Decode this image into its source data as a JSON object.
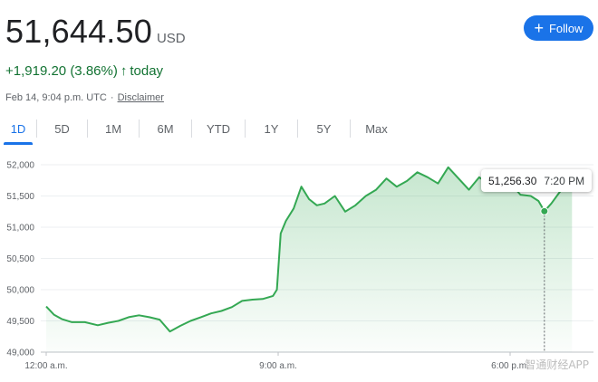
{
  "quote": {
    "price": "51,644.50",
    "currency": "USD",
    "change": "+1,919.20 (3.86%)",
    "change_arrow": "↑",
    "period": "today",
    "timestamp": "Feb 14, 9:04 p.m. UTC",
    "separator": "·",
    "disclaimer": "Disclaimer"
  },
  "follow_button": {
    "label": "Follow",
    "icon": "plus-icon"
  },
  "tabs": [
    {
      "label": "1D",
      "active": true
    },
    {
      "label": "5D",
      "active": false
    },
    {
      "label": "1M",
      "active": false
    },
    {
      "label": "6M",
      "active": false
    },
    {
      "label": "YTD",
      "active": false
    },
    {
      "label": "1Y",
      "active": false
    },
    {
      "label": "5Y",
      "active": false
    },
    {
      "label": "Max",
      "active": false
    }
  ],
  "tooltip": {
    "value": "51,256.30",
    "time": "7:20 PM"
  },
  "watermark": "智通财经APP",
  "colors": {
    "line": "#34a853",
    "accent": "#1a73e8",
    "positive": "#137333"
  },
  "chart_data": {
    "type": "area",
    "title": "",
    "xlabel": "",
    "ylabel": "",
    "ylim": [
      49000,
      52000
    ],
    "xlim": [
      0,
      23
    ],
    "yticks": [
      "52,000",
      "51,500",
      "51,000",
      "50,500",
      "50,000",
      "49,500",
      "49,000"
    ],
    "ytick_values": [
      52000,
      51500,
      51000,
      50500,
      50000,
      49500,
      49000
    ],
    "xticks": [
      "12:00 a.m.",
      "9:00 a.m.",
      "6:00 p.m."
    ],
    "xtick_values": [
      0,
      9,
      18
    ],
    "grid": true,
    "crosshair_x": 19.33,
    "highlight_point": {
      "x": 19.33,
      "y": 51256.3
    },
    "x": [
      0,
      0.3,
      0.6,
      1.0,
      1.5,
      2.0,
      2.4,
      2.8,
      3.2,
      3.6,
      4.0,
      4.4,
      4.8,
      5.2,
      5.6,
      6.0,
      6.4,
      6.8,
      7.2,
      7.6,
      8.0,
      8.4,
      8.8,
      8.95,
      9.0,
      9.1,
      9.3,
      9.6,
      9.9,
      10.2,
      10.5,
      10.8,
      11.2,
      11.6,
      12.0,
      12.4,
      12.8,
      13.2,
      13.6,
      14.0,
      14.4,
      14.8,
      15.2,
      15.6,
      16.0,
      16.4,
      16.8,
      17.2,
      17.6,
      18.0,
      18.4,
      18.8,
      19.1,
      19.33,
      19.6,
      19.9,
      20.1,
      20.4
    ],
    "values": [
      49730,
      49600,
      49530,
      49480,
      49480,
      49430,
      49470,
      49500,
      49560,
      49590,
      49560,
      49520,
      49330,
      49420,
      49500,
      49560,
      49620,
      49660,
      49720,
      49820,
      49840,
      49850,
      49900,
      50000,
      50300,
      50900,
      51100,
      51300,
      51650,
      51450,
      51350,
      51380,
      51500,
      51250,
      51350,
      51500,
      51600,
      51780,
      51650,
      51740,
      51880,
      51800,
      51700,
      51960,
      51780,
      51600,
      51800,
      51680,
      51650,
      51710,
      51520,
      51500,
      51420,
      51256.3,
      51380,
      51550,
      51650,
      51600
    ]
  }
}
